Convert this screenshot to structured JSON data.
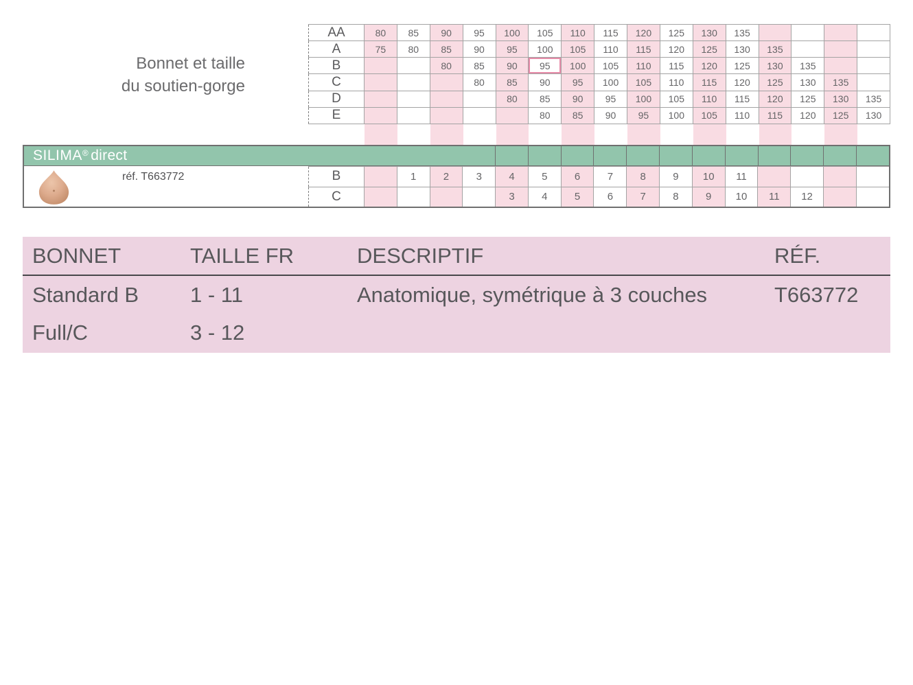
{
  "colors": {
    "band_green": "#92c5ac",
    "stripe_pink": "#f9dce3",
    "details_pink": "#edd3e1",
    "highlight_border": "#e68ba8",
    "text_gray": "#58585a"
  },
  "bra_size_chart": {
    "caption_line1": "Bonnet et taille",
    "caption_line2": "du soutien-gorge",
    "columns": 16,
    "rows": [
      {
        "cup": "AA",
        "values": [
          "80",
          "85",
          "90",
          "95",
          "100",
          "105",
          "110",
          "115",
          "120",
          "125",
          "130",
          "135",
          "",
          "",
          "",
          ""
        ]
      },
      {
        "cup": "A",
        "values": [
          "75",
          "80",
          "85",
          "90",
          "95",
          "100",
          "105",
          "110",
          "115",
          "120",
          "125",
          "130",
          "135",
          "",
          "",
          ""
        ]
      },
      {
        "cup": "B",
        "values": [
          "",
          "",
          "80",
          "85",
          "90",
          "95",
          "100",
          "105",
          "110",
          "115",
          "120",
          "125",
          "130",
          "135",
          "",
          ""
        ]
      },
      {
        "cup": "C",
        "values": [
          "",
          "",
          "",
          "80",
          "85",
          "90",
          "95",
          "100",
          "105",
          "110",
          "115",
          "120",
          "125",
          "130",
          "135",
          ""
        ]
      },
      {
        "cup": "D",
        "values": [
          "",
          "",
          "",
          "",
          "80",
          "85",
          "90",
          "95",
          "100",
          "105",
          "110",
          "115",
          "120",
          "125",
          "130",
          "135"
        ]
      },
      {
        "cup": "E",
        "values": [
          "",
          "",
          "",
          "",
          "",
          "80",
          "85",
          "90",
          "95",
          "100",
          "105",
          "110",
          "115",
          "120",
          "125",
          "130"
        ]
      }
    ],
    "highlight": {
      "cup": "B",
      "value": "95",
      "row_index": 2,
      "col_index": 5
    }
  },
  "product_band": {
    "brand": "SILIMA",
    "brand_mark": "®",
    "brand_suffix": "direct",
    "ref": "réf. T663772",
    "image": "breast-prosthesis-teardrop",
    "rows": [
      {
        "cup": "B",
        "values": [
          "",
          "1",
          "2",
          "3",
          "4",
          "5",
          "6",
          "7",
          "8",
          "9",
          "10",
          "11",
          "",
          "",
          "",
          ""
        ]
      },
      {
        "cup": "C",
        "values": [
          "",
          "",
          "",
          "",
          "3",
          "4",
          "5",
          "6",
          "7",
          "8",
          "9",
          "10",
          "11",
          "12",
          "",
          ""
        ]
      }
    ]
  },
  "details_table": {
    "headers": [
      "BONNET",
      "TAILLE FR",
      "DESCRIPTIF",
      "RÉF."
    ],
    "rows": [
      {
        "bonnet": "Standard B",
        "taille_fr": "1 - 11",
        "descriptif": "Anatomique, symétrique à 3 couches",
        "ref": "T663772"
      },
      {
        "bonnet": "Full/C",
        "taille_fr": "3 - 12",
        "descriptif": "",
        "ref": ""
      }
    ]
  }
}
